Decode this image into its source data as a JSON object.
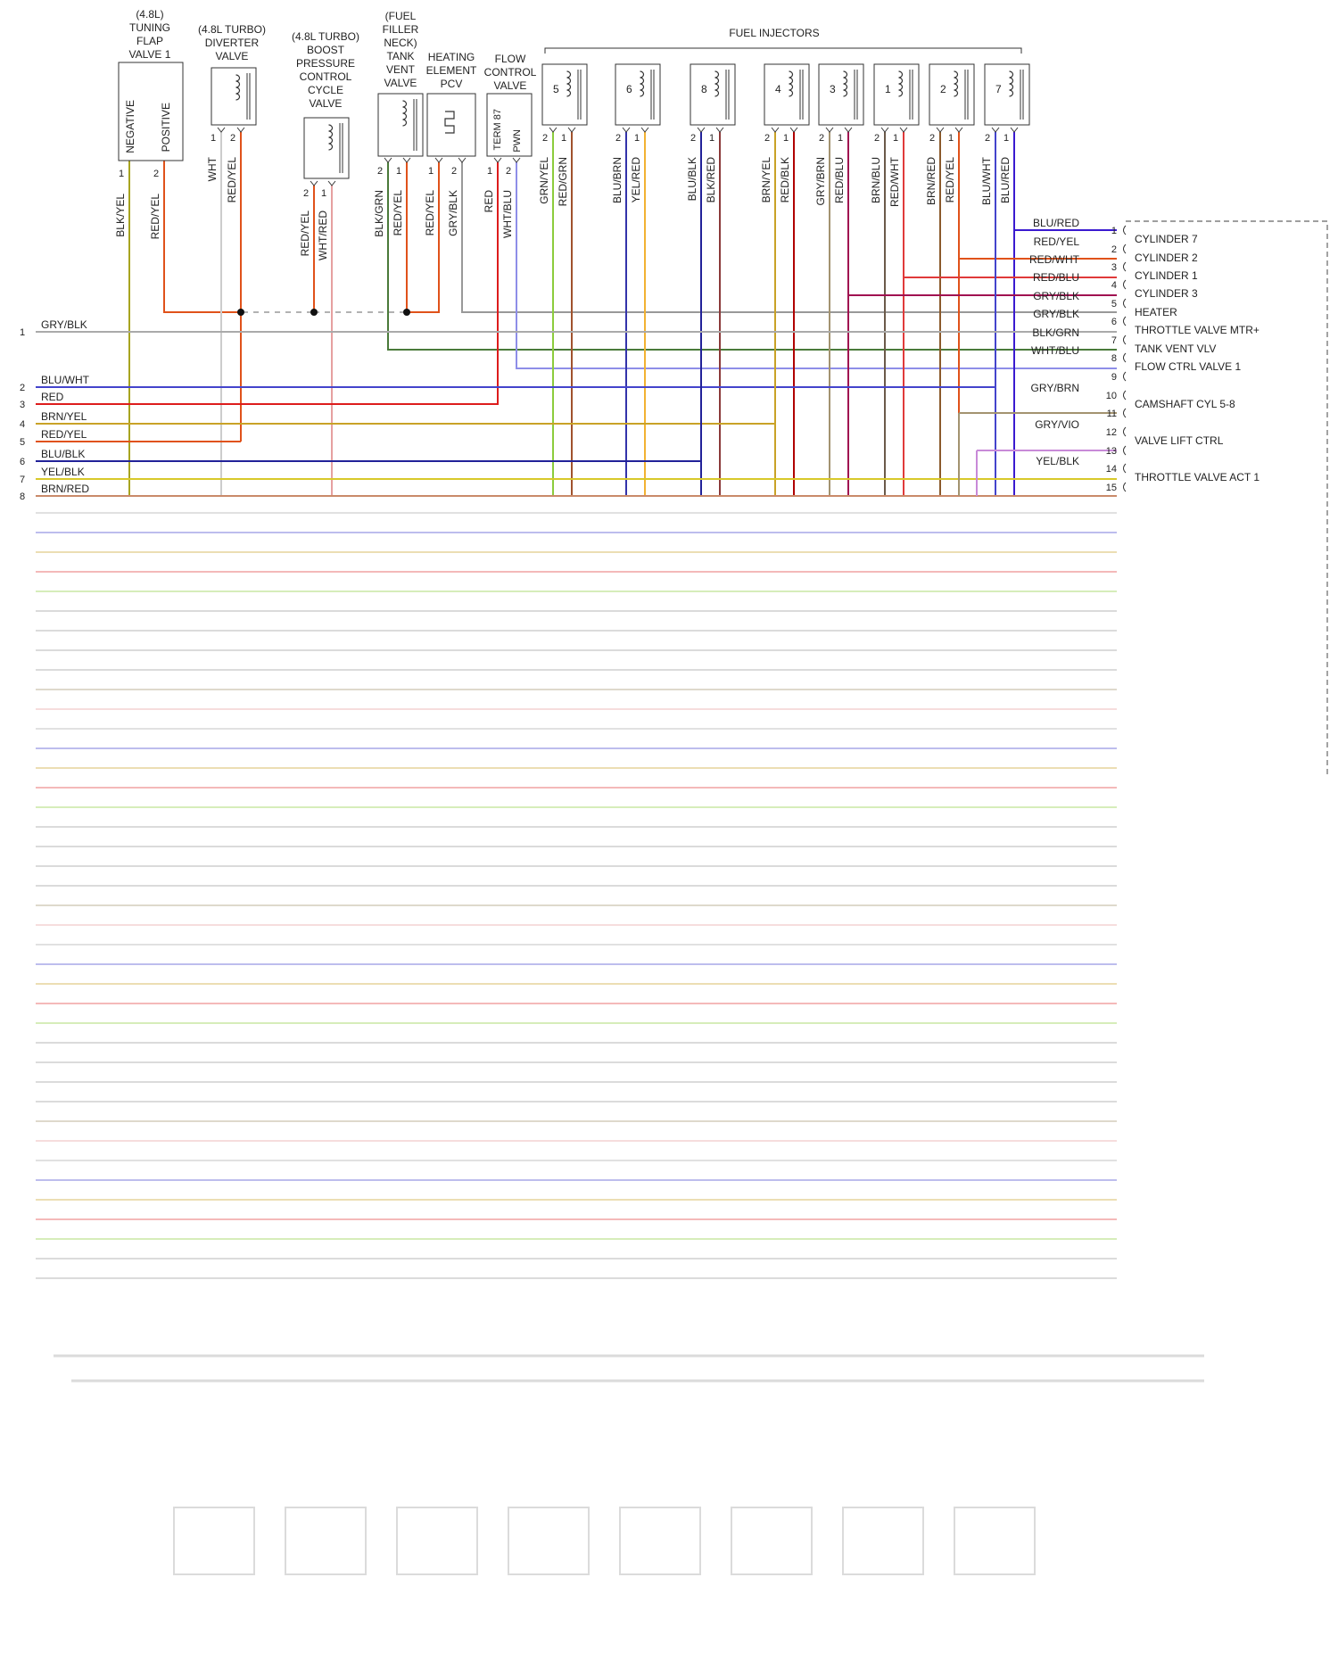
{
  "top_components": [
    {
      "id": "tfv",
      "title": [
        "(4.8L)",
        "TUNING",
        "FLAP",
        "VALVE 1"
      ],
      "pins": [
        {
          "num": "1",
          "wire": "BLK/YEL",
          "color": "#a8a420",
          "name": "NEGATIVE"
        },
        {
          "num": "2",
          "wire": "RED/YEL",
          "color": "#e0521a",
          "name": "POSITIVE"
        }
      ]
    },
    {
      "id": "tdv",
      "title": [
        "(4.8L TURBO)",
        "DIVERTER",
        "VALVE"
      ],
      "pins": [
        {
          "num": "1",
          "wire": "WHT",
          "color": "#cccccc"
        },
        {
          "num": "2",
          "wire": "RED/YEL",
          "color": "#e0521a"
        }
      ]
    },
    {
      "id": "bpv",
      "title": [
        "(4.8L TURBO)",
        "BOOST",
        "PRESSURE",
        "CONTROL",
        "CYCLE",
        "VALVE"
      ],
      "pins": [
        {
          "num": "2",
          "wire": "RED/YEL",
          "color": "#e0521a"
        },
        {
          "num": "1",
          "wire": "WHT/RED",
          "color": "#e6a0a0"
        }
      ]
    },
    {
      "id": "tvv",
      "title": [
        "(FUEL",
        "FILLER",
        "NECK)",
        "TANK",
        "VENT",
        "VALVE"
      ],
      "pins": [
        {
          "num": "2",
          "wire": "BLK/GRN",
          "color": "#4a7a3a"
        },
        {
          "num": "1",
          "wire": "RED/YEL",
          "color": "#e0521a"
        }
      ]
    },
    {
      "id": "hep",
      "title": [
        "HEATING",
        "ELEMENT",
        "PCV"
      ],
      "pins": [
        {
          "num": "1",
          "wire": "RED/YEL",
          "color": "#e0521a"
        },
        {
          "num": "2",
          "wire": "GRY/BLK",
          "color": "#999999"
        }
      ]
    },
    {
      "id": "fcv",
      "title": [
        "FLOW",
        "CONTROL",
        "VALVE"
      ],
      "pins": [
        {
          "num": "1",
          "wire": "RED",
          "color": "#dd1c1c",
          "name": "TERM 87"
        },
        {
          "num": "2",
          "wire": "WHT/BLU",
          "color": "#8e8ee8",
          "name": "PWN"
        }
      ]
    }
  ],
  "injectors_label": "FUEL INJECTORS",
  "injectors": [
    {
      "num": "5",
      "w2": "GRN/YEL",
      "c2": "#8ccc3c",
      "w1": "RED/GRN",
      "c1": "#a0522d"
    },
    {
      "num": "6",
      "w2": "BLU/BRN",
      "c2": "#3333aa",
      "w1": "YEL/RED",
      "c1": "#f2b233"
    },
    {
      "num": "8",
      "w2": "BLU/BLK",
      "c2": "#222299",
      "w1": "BLK/RED",
      "c1": "#8b3a3a"
    },
    {
      "num": "4",
      "w2": "BRN/YEL",
      "c2": "#c9a227",
      "w1": "RED/BLK",
      "c1": "#b00000"
    },
    {
      "num": "3",
      "w2": "GRY/BRN",
      "c2": "#a39370",
      "w1": "RED/BLU",
      "c1": "#a01050"
    },
    {
      "num": "1",
      "w2": "BRN/BLU",
      "c2": "#6b5a4a",
      "w1": "RED/WHT",
      "c1": "#e03a3a"
    },
    {
      "num": "2",
      "w2": "BRN/RED",
      "c2": "#8b5a2b",
      "w1": "RED/YEL",
      "c1": "#e0521a"
    },
    {
      "num": "7",
      "w2": "BLU/WHT",
      "c2": "#4444cc",
      "w1": "BLU/RED",
      "c1": "#3a1ad0"
    }
  ],
  "left_pins": [
    {
      "num": "1",
      "wire": "GRY/BLK",
      "color": "#aaaaaa"
    },
    {
      "num": "2",
      "wire": "BLU/WHT",
      "color": "#4444cc"
    },
    {
      "num": "3",
      "wire": "RED",
      "color": "#dd1c1c"
    },
    {
      "num": "4",
      "wire": "BRN/YEL",
      "color": "#c9a227"
    },
    {
      "num": "5",
      "wire": "RED/YEL",
      "color": "#e0521a"
    },
    {
      "num": "6",
      "wire": "BLU/BLK",
      "color": "#222299"
    },
    {
      "num": "7",
      "wire": "YEL/BLK",
      "color": "#d8c92a"
    },
    {
      "num": "8",
      "wire": "BRN/RED",
      "color": "#c98a6a"
    }
  ],
  "right_pins": [
    {
      "num": "1",
      "wire": "BLU/RED",
      "color": "#3a1ad0",
      "name": "CYLINDER 7"
    },
    {
      "num": "2",
      "wire": "RED/YEL",
      "color": "#e0521a",
      "name": "CYLINDER 2"
    },
    {
      "num": "3",
      "wire": "RED/WHT",
      "color": "#e03a3a",
      "name": "CYLINDER 1"
    },
    {
      "num": "4",
      "wire": "RED/BLU",
      "color": "#a01050",
      "name": "CYLINDER 3"
    },
    {
      "num": "5",
      "wire": "GRY/BLK",
      "color": "#999999",
      "name": "HEATER"
    },
    {
      "num": "6",
      "wire": "GRY/BLK",
      "color": "#999999",
      "name": "THROTTLE VALVE MTR+"
    },
    {
      "num": "7",
      "wire": "BLK/GRN",
      "color": "#4a7a3a",
      "name": "TANK VENT VLV"
    },
    {
      "num": "8",
      "wire": "WHT/BLU",
      "color": "#8e8ee8",
      "name": "FLOW CTRL VALVE 1"
    },
    {
      "num": "9",
      "wire": "",
      "color": "",
      "name": ""
    },
    {
      "num": "10",
      "wire": "GRY/BRN",
      "color": "#a39370",
      "name": "CAMSHAFT CYL 5-8"
    },
    {
      "num": "11",
      "wire": "",
      "color": "",
      "name": ""
    },
    {
      "num": "12",
      "wire": "GRY/VIO",
      "color": "#c88ad8",
      "name": "VALVE LIFT CTRL"
    },
    {
      "num": "13",
      "wire": "",
      "color": "",
      "name": ""
    },
    {
      "num": "14",
      "wire": "YEL/BLK",
      "color": "#d8c92a",
      "name": "THROTTLE VALVE ACT 1"
    },
    {
      "num": "15",
      "wire": "",
      "color": "",
      "name": ""
    }
  ],
  "colors": {
    "bg": "#ffffff",
    "line": "#333333",
    "dash": "#666666"
  }
}
